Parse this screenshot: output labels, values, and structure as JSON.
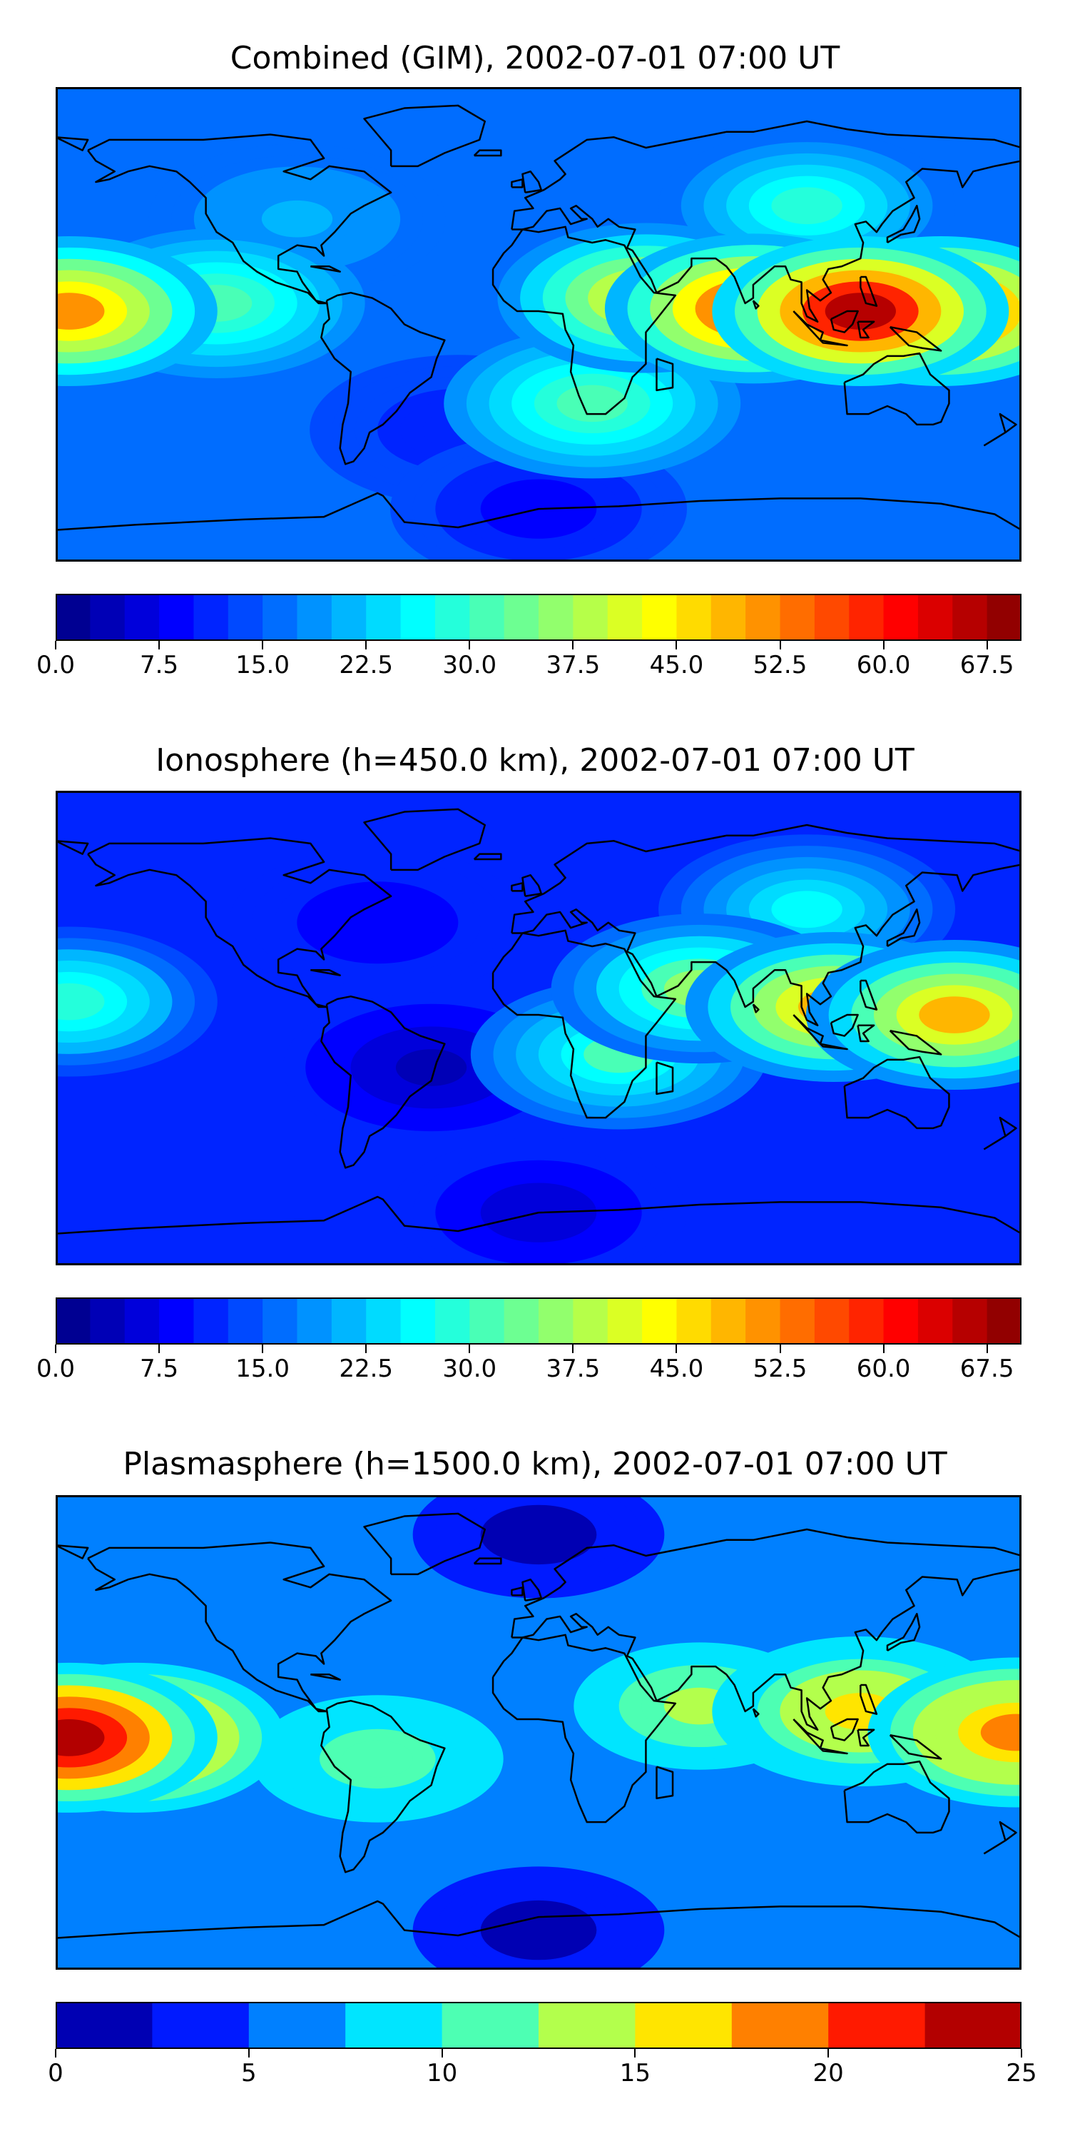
{
  "chart_data": [
    {
      "type": "heatmap",
      "title": "Combined (GIM), 2002-07-01 07:00 UT",
      "colorbar": {
        "range": [
          0.0,
          70.0
        ],
        "levels": 28,
        "ticks": [
          "0.0",
          "7.5",
          "15.0",
          "22.5",
          "30.0",
          "37.5",
          "45.0",
          "52.5",
          "60.0",
          "67.5"
        ],
        "tick_values": [
          0.0,
          7.5,
          15.0,
          22.5,
          30.0,
          37.5,
          45.0,
          52.5,
          60.0,
          67.5
        ],
        "colormap": "jet",
        "placement": "below"
      },
      "background_level": 15,
      "features": [
        {
          "lon": 120,
          "lat": 5,
          "value": 66
        },
        {
          "lon": 80,
          "lat": 6,
          "value": 58
        },
        {
          "lon": 150,
          "lat": 5,
          "value": 62
        },
        {
          "lon": 40,
          "lat": 10,
          "value": 42
        },
        {
          "lon": -175,
          "lat": 5,
          "value": 50
        },
        {
          "lon": -120,
          "lat": 8,
          "value": 30
        },
        {
          "lon": 20,
          "lat": -30,
          "value": 30
        },
        {
          "lon": 100,
          "lat": 45,
          "value": 28
        },
        {
          "lon": -90,
          "lat": 40,
          "value": 20
        },
        {
          "lon": -30,
          "lat": -40,
          "value": 10
        },
        {
          "lon": 0,
          "lat": -70,
          "value": 8
        }
      ]
    },
    {
      "type": "heatmap",
      "title": "Ionosphere  (h=450.0 km), 2002-07-01 07:00 UT",
      "colorbar": {
        "range": [
          0.0,
          70.0
        ],
        "levels": 28,
        "ticks": [
          "0.0",
          "7.5",
          "15.0",
          "22.5",
          "30.0",
          "37.5",
          "45.0",
          "52.5",
          "60.0",
          "67.5"
        ],
        "tick_values": [
          0.0,
          7.5,
          15.0,
          22.5,
          30.0,
          37.5,
          45.0,
          52.5,
          60.0,
          67.5
        ],
        "colormap": "jet",
        "placement": "below"
      },
      "background_level": 12,
      "features": [
        {
          "lon": 110,
          "lat": 8,
          "value": 48
        },
        {
          "lon": 155,
          "lat": 5,
          "value": 48
        },
        {
          "lon": 60,
          "lat": 15,
          "value": 35
        },
        {
          "lon": 30,
          "lat": -10,
          "value": 30
        },
        {
          "lon": -175,
          "lat": 10,
          "value": 28
        },
        {
          "lon": -40,
          "lat": -15,
          "value": 4
        },
        {
          "lon": -60,
          "lat": 40,
          "value": 8
        },
        {
          "lon": 100,
          "lat": 45,
          "value": 25
        },
        {
          "lon": 0,
          "lat": -70,
          "value": 6
        }
      ]
    },
    {
      "type": "heatmap",
      "title": "Plasmasphere (h=1500.0 km), 2002-07-01 07:00 UT",
      "colorbar": {
        "range": [
          0,
          25
        ],
        "levels": 10,
        "ticks": [
          "0",
          "5",
          "10",
          "15",
          "20",
          "25"
        ],
        "tick_values": [
          0,
          5,
          10,
          15,
          20,
          25
        ],
        "colormap": "jet",
        "placement": "below"
      },
      "background_level": 6,
      "features": [
        {
          "lon": -175,
          "lat": -2,
          "value": 24
        },
        {
          "lon": -150,
          "lat": -2,
          "value": 19
        },
        {
          "lon": 120,
          "lat": 8,
          "value": 16
        },
        {
          "lon": 178,
          "lat": 0,
          "value": 19
        },
        {
          "lon": 60,
          "lat": 10,
          "value": 13
        },
        {
          "lon": -60,
          "lat": -10,
          "value": 11
        },
        {
          "lon": 30,
          "lat": -20,
          "value": 5
        },
        {
          "lon": 0,
          "lat": 75,
          "value": 1
        },
        {
          "lon": 0,
          "lat": -75,
          "value": 1
        }
      ]
    }
  ]
}
